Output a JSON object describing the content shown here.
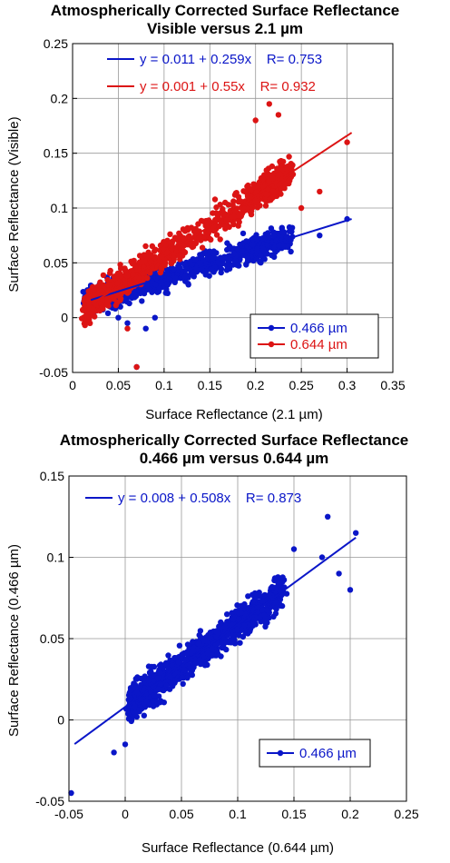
{
  "colors": {
    "blue": "#0a16c8",
    "red": "#dc1414",
    "grid": "#999999",
    "axis": "#000000"
  },
  "chart_data": [
    {
      "type": "scatter",
      "title": "Atmospherically Corrected Surface Reflectance",
      "subtitle": "Visible versus 2.1 µm",
      "xlabel": "Surface Reflectance (2.1 µm)",
      "ylabel": "Surface Reflectance (Visible)",
      "xlim": [
        0,
        0.35
      ],
      "ylim": [
        -0.05,
        0.25
      ],
      "xticks": [
        0,
        0.05,
        0.1,
        0.15,
        0.2,
        0.25,
        0.3,
        0.35
      ],
      "yticks": [
        -0.05,
        0,
        0.05,
        0.1,
        0.15,
        0.2,
        0.25
      ],
      "xtick_labels": [
        "0",
        "0.05",
        "0.1",
        "0.15",
        "0.2",
        "0.25",
        "0.3",
        "0.35"
      ],
      "ytick_labels": [
        "-0.05",
        "0",
        "0.05",
        "0.1",
        "0.15",
        "0.2",
        "0.25"
      ],
      "grid": true,
      "legend_position": "bottom-right",
      "equations": [
        {
          "text": "y = 0.011 + 0.259x    R= 0.753",
          "color": "#0a16c8"
        },
        {
          "text": "y = 0.001 + 0.55x    R= 0.932",
          "color": "#dc1414"
        }
      ],
      "series": [
        {
          "name": "0.466 µm",
          "color": "#0a16c8",
          "fit": {
            "intercept": 0.011,
            "slope": 0.259,
            "x_range": [
              0.02,
              0.305
            ]
          },
          "cloud": {
            "x_range": [
              0.015,
              0.3
            ],
            "intercept": 0.011,
            "slope": 0.259,
            "spread": 0.012,
            "outliers": [
              [
                0.07,
                -0.045
              ],
              [
                0.08,
                -0.01
              ],
              [
                0.06,
                -0.005
              ],
              [
                0.09,
                0.0
              ],
              [
                0.3,
                0.09
              ],
              [
                0.27,
                0.075
              ],
              [
                0.24,
                0.082
              ],
              [
                0.05,
                0.0
              ]
            ]
          }
        },
        {
          "name": "0.644 µm",
          "color": "#dc1414",
          "fit": {
            "intercept": 0.001,
            "slope": 0.55,
            "x_range": [
              0.02,
              0.305
            ]
          },
          "cloud": {
            "x_range": [
              0.015,
              0.3
            ],
            "intercept": 0.001,
            "slope": 0.55,
            "spread": 0.014,
            "outliers": [
              [
                0.215,
                0.195
              ],
              [
                0.2,
                0.18
              ],
              [
                0.3,
                0.16
              ],
              [
                0.27,
                0.115
              ],
              [
                0.25,
                0.1
              ],
              [
                0.07,
                -0.045
              ],
              [
                0.06,
                -0.01
              ],
              [
                0.225,
                0.185
              ]
            ]
          }
        }
      ]
    },
    {
      "type": "scatter",
      "title": "Atmospherically Corrected Surface Reflectance",
      "subtitle": "0.466 µm versus 0.644 µm",
      "xlabel": "Surface Reflectance (0.644 µm)",
      "ylabel": "Surface Reflectance (0.466 µm)",
      "xlim": [
        -0.05,
        0.25
      ],
      "ylim": [
        -0.05,
        0.15
      ],
      "xticks": [
        -0.05,
        0,
        0.05,
        0.1,
        0.15,
        0.2,
        0.25
      ],
      "yticks": [
        -0.05,
        0,
        0.05,
        0.1,
        0.15
      ],
      "xtick_labels": [
        "-0.05",
        "0",
        "0.05",
        "0.1",
        "0.15",
        "0.2",
        "0.25"
      ],
      "ytick_labels": [
        "-0.05",
        "0",
        "0.05",
        "0.1",
        "0.15"
      ],
      "grid": true,
      "legend_position": "bottom-right",
      "equations": [
        {
          "text": "y = 0.008 + 0.508x    R= 0.873",
          "color": "#0a16c8"
        }
      ],
      "series": [
        {
          "name": "0.466 µm",
          "color": "#0a16c8",
          "fit": {
            "intercept": 0.008,
            "slope": 0.508,
            "x_range": [
              -0.045,
              0.205
            ]
          },
          "cloud": {
            "x_range": [
              0.005,
              0.16
            ],
            "intercept": 0.008,
            "slope": 0.508,
            "spread": 0.01,
            "outliers": [
              [
                -0.048,
                -0.045
              ],
              [
                0.205,
                0.115
              ],
              [
                0.18,
                0.125
              ],
              [
                0.2,
                0.08
              ],
              [
                0.175,
                0.1
              ],
              [
                -0.01,
                -0.02
              ],
              [
                0.0,
                -0.015
              ],
              [
                0.15,
                0.105
              ],
              [
                0.19,
                0.09
              ]
            ]
          }
        }
      ]
    }
  ]
}
